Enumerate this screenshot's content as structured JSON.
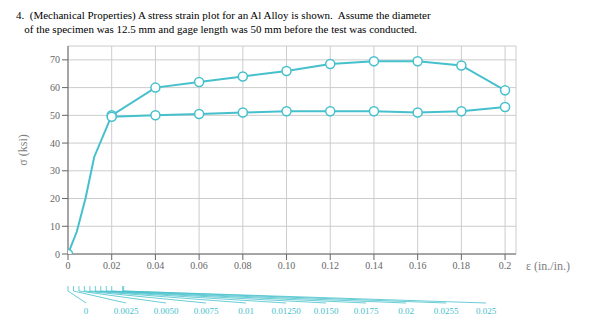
{
  "chart_data": {
    "type": "line",
    "title": "4.  (Mechanical Properties) A stress strain plot for an Al Alloy is shown.  Assume the diameter",
    "subtitle": "   of the specimen was 12.5 mm and gage length was 50 mm before the test was conducted.",
    "x_label": "ε (in./in.)",
    "y_label": "σ (ksi)",
    "xlim": [
      0,
      0.205
    ],
    "xticks": [
      0,
      0.02,
      0.04,
      0.06,
      0.08,
      {
        "value": 0.1,
        "label": "0.10"
      },
      0.12,
      0.14,
      0.16,
      0.18,
      0.2
    ],
    "x2ticks": [
      0,
      0.0025,
      {
        "value": 0.005,
        "label": "0.0050"
      },
      0.0075,
      0.01,
      {
        "value": 0.0125,
        "label": "0.01250"
      },
      {
        "value": 0.015,
        "label": "0.0150"
      },
      0.0175,
      0.02,
      0.0255,
      0.025
    ],
    "ylim": [
      0,
      75
    ],
    "yticks": [
      0,
      10,
      20,
      30,
      40,
      50,
      60,
      70
    ],
    "grid": true,
    "series": [
      {
        "type": "line",
        "color": "#45c0cc",
        "marker": "none",
        "line_style": "solid",
        "x": [
          0,
          0.004,
          0.008,
          0.012,
          0.02,
          0.04,
          0.06,
          0.08,
          0.1,
          0.12,
          0.14,
          0.16,
          0.18,
          0.2
        ],
        "values": [
          0,
          8,
          20,
          35,
          50,
          60,
          62,
          64,
          66,
          68.5,
          69.5,
          69.5,
          68,
          59
        ]
      },
      {
        "type": "scatter",
        "color": "#45c0cc",
        "marker": "open_circle",
        "x": [
          0,
          0.02,
          0.04,
          0.06,
          0.08,
          0.1,
          0.12,
          0.14,
          0.16,
          0.18,
          0.2
        ],
        "values": [
          0,
          50,
          60,
          62,
          64,
          66,
          68.5,
          69.5,
          69.5,
          68,
          59
        ]
      },
      {
        "type": "line",
        "color": "#45c0cc",
        "marker": "none",
        "line_style": "solid",
        "x": [
          0.02,
          0.04,
          0.06,
          0.08,
          0.1,
          0.12,
          0.14,
          0.16,
          0.18,
          0.2
        ],
        "values": [
          49.5,
          50,
          50.5,
          51,
          51.5,
          51.5,
          51.5,
          51,
          51.5,
          53
        ]
      },
      {
        "type": "scatter",
        "color": "#45c0cc",
        "marker": "open_circle",
        "x": [
          0.02,
          0.04,
          0.06,
          0.08,
          0.1,
          0.12,
          0.14,
          0.16,
          0.18,
          0.2
        ],
        "values": [
          49.5,
          50,
          50.5,
          51,
          51.5,
          51.5,
          51.5,
          51,
          51.5,
          53
        ]
      }
    ]
  }
}
